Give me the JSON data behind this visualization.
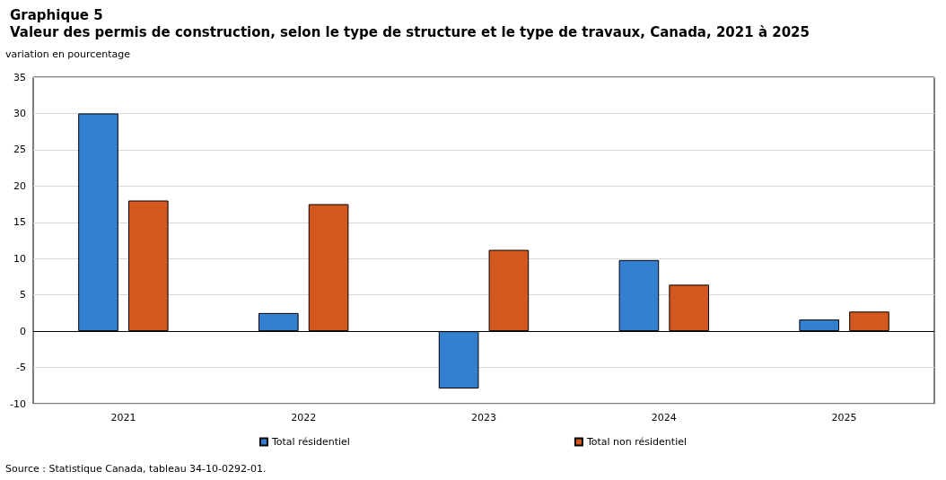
{
  "chart_data": {
    "type": "bar",
    "title": "Graphique 5",
    "subtitle": "Valeur des permis de construction, selon le type de structure et le type de travaux, Canada, 2021 à 2025",
    "ylabel": "variation en pourcentage",
    "categories": [
      "2021",
      "2022",
      "2023",
      "2024",
      "2025"
    ],
    "series": [
      {
        "name": "Total résidentiel",
        "color": "#3380d0",
        "values": [
          30.0,
          2.5,
          -7.9,
          9.8,
          1.6
        ]
      },
      {
        "name": "Total non résidentiel",
        "color": "#d2581f",
        "values": [
          18.0,
          17.5,
          11.2,
          6.4,
          2.7
        ]
      }
    ],
    "ylim": [
      -10,
      35
    ],
    "yticks": [
      -10,
      -5,
      0,
      5,
      10,
      15,
      20,
      25,
      30,
      35
    ],
    "grid": "y",
    "legend": "bottom",
    "annotations": [
      "Source : Statistique Canada, tableau 34-10-0292-01."
    ]
  }
}
